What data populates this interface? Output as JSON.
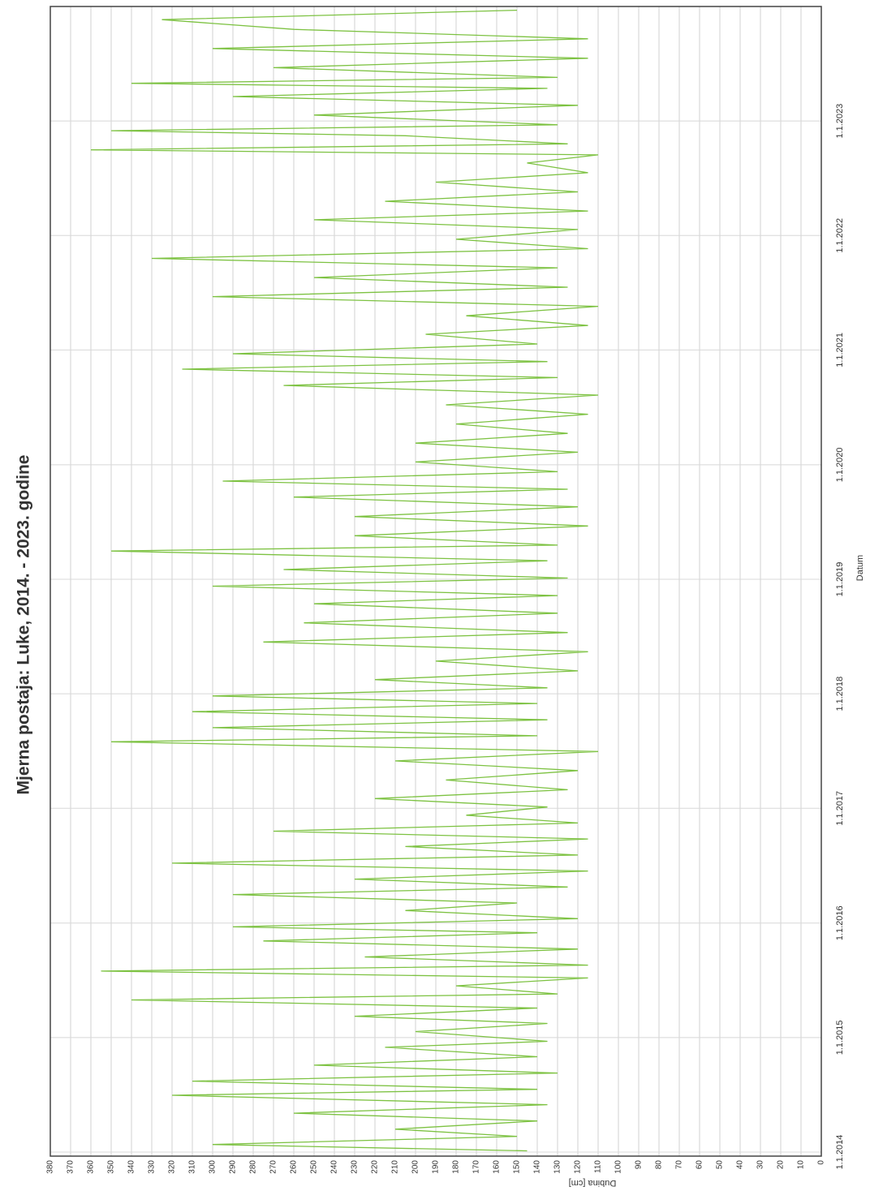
{
  "chart_data": {
    "type": "line",
    "title": "Mjerna postaja: Luke, 2014. - 2023. godine",
    "x_label": "Datum",
    "y_label": "Dubina [cm]",
    "xlim": [
      "2014-01-01",
      "2024-01-01"
    ],
    "xticks": [
      {
        "value": "2014-01-01",
        "label": "1.1.2014"
      },
      {
        "value": "2015-01-01",
        "label": "1.1.2015"
      },
      {
        "value": "2016-01-01",
        "label": "1.1.2016"
      },
      {
        "value": "2017-01-01",
        "label": "1.1.2017"
      },
      {
        "value": "2018-01-01",
        "label": "1.1.2018"
      },
      {
        "value": "2019-01-01",
        "label": "1.1.2019"
      },
      {
        "value": "2020-01-01",
        "label": "1.1.2020"
      },
      {
        "value": "2021-01-01",
        "label": "1.1.2021"
      },
      {
        "value": "2022-01-01",
        "label": "1.1.2022"
      },
      {
        "value": "2023-01-01",
        "label": "1.1.2023"
      }
    ],
    "ylim": [
      0,
      380
    ],
    "yticks": [
      0,
      10,
      20,
      30,
      40,
      50,
      60,
      70,
      80,
      90,
      100,
      110,
      120,
      130,
      140,
      150,
      160,
      170,
      180,
      190,
      200,
      210,
      220,
      230,
      240,
      250,
      260,
      270,
      280,
      290,
      300,
      310,
      320,
      330,
      340,
      350,
      360,
      370,
      380
    ],
    "grid": true,
    "color": "#7dc242",
    "x": [
      "2014-01-05",
      "2014-01-25",
      "2014-02-20",
      "2014-03-15",
      "2014-04-10",
      "2014-05-05",
      "2014-06-01",
      "2014-07-01",
      "2014-07-20",
      "2014-08-15",
      "2014-09-10",
      "2014-10-05",
      "2014-11-01",
      "2014-12-01",
      "2014-12-20",
      "2015-01-20",
      "2015-02-15",
      "2015-03-10",
      "2015-04-05",
      "2015-05-01",
      "2015-05-20",
      "2015-06-15",
      "2015-07-10",
      "2015-08-01",
      "2015-08-20",
      "2015-09-15",
      "2015-10-10",
      "2015-11-05",
      "2015-12-01",
      "2015-12-20",
      "2016-01-15",
      "2016-02-10",
      "2016-03-05",
      "2016-04-01",
      "2016-04-25",
      "2016-05-20",
      "2016-06-15",
      "2016-07-10",
      "2016-08-05",
      "2016-09-01",
      "2016-09-25",
      "2016-10-20",
      "2016-11-15",
      "2016-12-10",
      "2017-01-05",
      "2017-02-01",
      "2017-03-01",
      "2017-04-01",
      "2017-05-01",
      "2017-06-01",
      "2017-07-01",
      "2017-08-01",
      "2017-08-20",
      "2017-09-15",
      "2017-10-10",
      "2017-11-05",
      "2017-12-01",
      "2017-12-25",
      "2018-01-20",
      "2018-02-15",
      "2018-03-15",
      "2018-04-15",
      "2018-05-15",
      "2018-06-15",
      "2018-07-15",
      "2018-08-15",
      "2018-09-15",
      "2018-10-15",
      "2018-11-10",
      "2018-12-10",
      "2019-01-05",
      "2019-02-01",
      "2019-03-01",
      "2019-04-01",
      "2019-04-20",
      "2019-05-20",
      "2019-06-20",
      "2019-07-20",
      "2019-08-20",
      "2019-09-20",
      "2019-10-15",
      "2019-11-10",
      "2019-12-10",
      "2020-01-10",
      "2020-02-10",
      "2020-03-10",
      "2020-04-10",
      "2020-05-10",
      "2020-06-10",
      "2020-07-10",
      "2020-08-10",
      "2020-09-10",
      "2020-10-05",
      "2020-11-01",
      "2020-11-25",
      "2020-12-20",
      "2021-01-20",
      "2021-02-20",
      "2021-03-20",
      "2021-04-20",
      "2021-05-20",
      "2021-06-20",
      "2021-07-20",
      "2021-08-20",
      "2021-09-20",
      "2021-10-20",
      "2021-11-20",
      "2021-12-20",
      "2022-01-20",
      "2022-02-20",
      "2022-03-20",
      "2022-04-20",
      "2022-05-20",
      "2022-06-20",
      "2022-07-20",
      "2022-08-20",
      "2022-09-15",
      "2022-10-01",
      "2022-10-20",
      "2022-11-15",
      "2022-12-01",
      "2022-12-20",
      "2023-01-20",
      "2023-02-20",
      "2023-03-20",
      "2023-04-15",
      "2023-05-01",
      "2023-05-20",
      "2023-06-20",
      "2023-07-20",
      "2023-08-20",
      "2023-09-20",
      "2023-10-20",
      "2023-11-20",
      "2023-12-20"
    ],
    "values": [
      145,
      300,
      150,
      210,
      140,
      260,
      135,
      320,
      140,
      310,
      130,
      250,
      140,
      215,
      135,
      200,
      135,
      230,
      140,
      340,
      130,
      180,
      115,
      355,
      115,
      225,
      120,
      275,
      140,
      290,
      120,
      205,
      150,
      290,
      125,
      230,
      115,
      320,
      120,
      205,
      115,
      270,
      120,
      175,
      135,
      220,
      125,
      185,
      120,
      210,
      110,
      350,
      140,
      300,
      135,
      310,
      140,
      300,
      135,
      220,
      120,
      190,
      115,
      275,
      125,
      255,
      130,
      250,
      130,
      300,
      125,
      265,
      135,
      350,
      130,
      230,
      115,
      230,
      120,
      260,
      125,
      295,
      130,
      200,
      120,
      200,
      125,
      180,
      115,
      185,
      110,
      265,
      130,
      315,
      135,
      290,
      140,
      195,
      115,
      175,
      110,
      300,
      125,
      250,
      130,
      330,
      115,
      180,
      120,
      250,
      115,
      215,
      120,
      190,
      115,
      145,
      110,
      360,
      125,
      205,
      350,
      130,
      250,
      120,
      290,
      135,
      340,
      130,
      270,
      115,
      300,
      115,
      260,
      325,
      150
    ]
  }
}
